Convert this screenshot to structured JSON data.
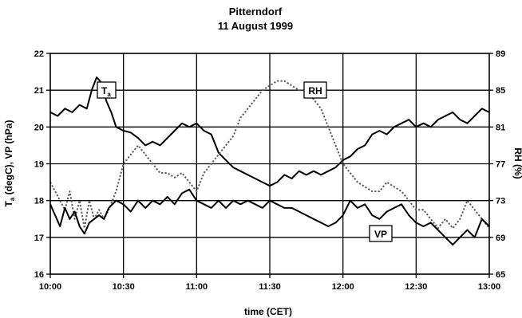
{
  "chart_data": {
    "type": "line",
    "title": "Pitterndorf",
    "subtitle": "11 August 1999",
    "xlabel": "time  (CET)",
    "ylabel_left": "T",
    "ylabel_left_sub": "a",
    "ylabel_left_rest": "  (degC),   VP  (hPa)",
    "ylabel_right": "RH   (%)",
    "x_ticks": [
      "10:00",
      "10:30",
      "11:00",
      "11:30",
      "12:00",
      "12:30",
      "13:00"
    ],
    "xlim": [
      0,
      180
    ],
    "ylim_left": [
      16,
      22
    ],
    "y_ticks_left": [
      "16",
      "17",
      "18",
      "19",
      "20",
      "21",
      "22"
    ],
    "ylim_right": [
      65,
      89
    ],
    "y_ticks_right": [
      "65",
      "69",
      "73",
      "77",
      "81",
      "85",
      "89"
    ],
    "grid": true,
    "series": [
      {
        "name": "T",
        "name_sub": "a",
        "axis": "left",
        "style": "solid",
        "x": [
          0,
          3,
          6,
          9,
          12,
          15,
          17,
          19,
          21,
          23,
          25,
          27,
          30,
          33,
          36,
          39,
          42,
          45,
          48,
          51,
          54,
          57,
          60,
          63,
          66,
          69,
          72,
          75,
          78,
          81,
          84,
          87,
          90,
          93,
          96,
          99,
          102,
          105,
          108,
          111,
          114,
          117,
          120,
          123,
          126,
          129,
          132,
          135,
          138,
          141,
          144,
          147,
          150,
          153,
          156,
          159,
          162,
          165,
          168,
          171,
          174,
          177,
          180
        ],
        "values": [
          20.4,
          20.3,
          20.5,
          20.4,
          20.6,
          20.5,
          21.0,
          21.35,
          21.2,
          20.7,
          20.4,
          20.0,
          19.9,
          19.85,
          19.7,
          19.5,
          19.6,
          19.5,
          19.7,
          19.9,
          20.1,
          20.0,
          20.1,
          19.9,
          19.8,
          19.3,
          19.1,
          18.9,
          18.8,
          18.7,
          18.6,
          18.5,
          18.4,
          18.5,
          18.7,
          18.6,
          18.8,
          18.7,
          18.8,
          18.7,
          18.8,
          18.9,
          19.1,
          19.2,
          19.4,
          19.5,
          19.8,
          19.9,
          19.8,
          20.0,
          20.1,
          20.2,
          20.0,
          20.1,
          20.0,
          20.2,
          20.3,
          20.4,
          20.2,
          20.1,
          20.3,
          20.5,
          20.4
        ]
      },
      {
        "name": "RH",
        "axis": "right",
        "style": "dotted",
        "x": [
          0,
          2,
          4,
          6,
          8,
          10,
          12,
          14,
          16,
          18,
          20,
          22,
          24,
          27,
          30,
          33,
          36,
          39,
          42,
          45,
          48,
          51,
          54,
          57,
          60,
          63,
          66,
          69,
          72,
          75,
          78,
          81,
          84,
          87,
          90,
          93,
          96,
          99,
          102,
          105,
          108,
          111,
          114,
          117,
          120,
          123,
          126,
          129,
          132,
          135,
          138,
          141,
          144,
          147,
          150,
          153,
          156,
          159,
          162,
          165,
          168,
          171,
          174,
          177,
          180
        ],
        "values": [
          75,
          74,
          73,
          72,
          74,
          71,
          73,
          70,
          73,
          71,
          72,
          71,
          72,
          74,
          77,
          78,
          79,
          78,
          77,
          76,
          76,
          75.5,
          76,
          75,
          74,
          76,
          77,
          78,
          79,
          80,
          82,
          83,
          84,
          85,
          85.5,
          86,
          86,
          85.5,
          85,
          85,
          84,
          83,
          81,
          79,
          77,
          76,
          75,
          74.5,
          74,
          74,
          75,
          74.5,
          74,
          73,
          72,
          72,
          71,
          70,
          71,
          70,
          71,
          73,
          72,
          71,
          70
        ]
      },
      {
        "name": "VP",
        "axis": "left",
        "style": "solid",
        "x": [
          0,
          2,
          4,
          6,
          8,
          10,
          12,
          14,
          16,
          18,
          20,
          22,
          24,
          27,
          30,
          33,
          36,
          39,
          42,
          45,
          48,
          51,
          54,
          57,
          60,
          63,
          66,
          69,
          72,
          75,
          78,
          81,
          84,
          87,
          90,
          93,
          96,
          99,
          102,
          105,
          108,
          111,
          114,
          117,
          120,
          123,
          126,
          129,
          132,
          135,
          138,
          141,
          144,
          147,
          150,
          153,
          156,
          159,
          162,
          165,
          168,
          171,
          174,
          177,
          180
        ],
        "values": [
          17.9,
          17.6,
          17.3,
          17.8,
          17.5,
          17.7,
          17.3,
          17.1,
          17.4,
          17.5,
          17.6,
          17.5,
          17.8,
          18.0,
          17.9,
          17.7,
          18.0,
          17.8,
          18.0,
          17.9,
          18.1,
          17.9,
          18.2,
          18.3,
          18.0,
          17.9,
          17.8,
          18.0,
          17.8,
          18.0,
          17.9,
          18.0,
          17.9,
          17.8,
          18.0,
          17.9,
          17.8,
          17.8,
          17.7,
          17.6,
          17.5,
          17.4,
          17.3,
          17.4,
          17.6,
          18.0,
          17.8,
          17.9,
          17.6,
          17.5,
          17.7,
          17.8,
          17.9,
          17.6,
          17.4,
          17.3,
          17.4,
          17.2,
          17.0,
          16.8,
          17.0,
          17.2,
          17.0,
          17.5,
          17.3
        ]
      }
    ]
  }
}
